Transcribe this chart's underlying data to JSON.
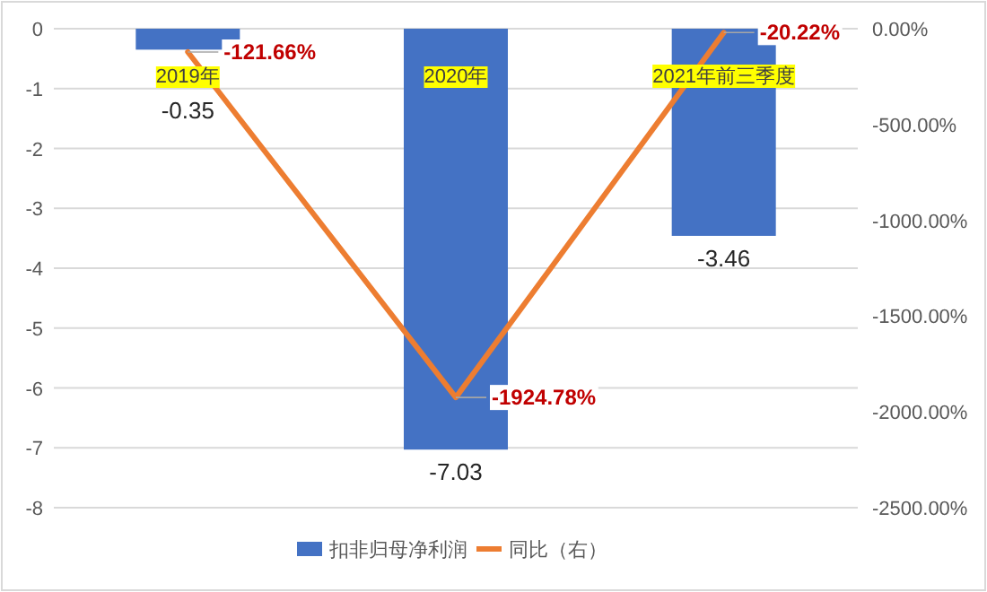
{
  "chart_data": {
    "type": "bar",
    "categories": [
      "2019年",
      "2020年",
      "2021年前三季度"
    ],
    "series": [
      {
        "name": "扣非归母净利润",
        "color": "#4472c4",
        "values": [
          -0.35,
          -7.03,
          -3.46
        ],
        "value_labels": [
          "-0.35",
          "-7.03",
          "-3.46"
        ]
      },
      {
        "name": "同比（右）",
        "type": "line",
        "axis": "y2",
        "color": "#ed7d31",
        "values": [
          -121.66,
          -1924.78,
          -20.22
        ],
        "value_labels": [
          "-121.66%",
          "-1924.78%",
          "-20.22%"
        ]
      }
    ],
    "ylim": [
      -8,
      0
    ],
    "yticks": [
      0,
      -1,
      -2,
      -3,
      -4,
      -5,
      -6,
      -7,
      -8
    ],
    "y2lim": [
      -2500,
      0
    ],
    "y2ticks": [
      {
        "value": 0,
        "label": "0.00%"
      },
      {
        "value": -500,
        "label": "-500.00%"
      },
      {
        "value": -1000,
        "label": "-1000.00%"
      },
      {
        "value": -1500,
        "label": "-1500.00%"
      },
      {
        "value": -2000,
        "label": "-2000.00%"
      },
      {
        "value": -2500,
        "label": "-2500.00%"
      }
    ],
    "grid": "y",
    "legend": "bottom",
    "marker": "none",
    "line_style": "solid"
  }
}
